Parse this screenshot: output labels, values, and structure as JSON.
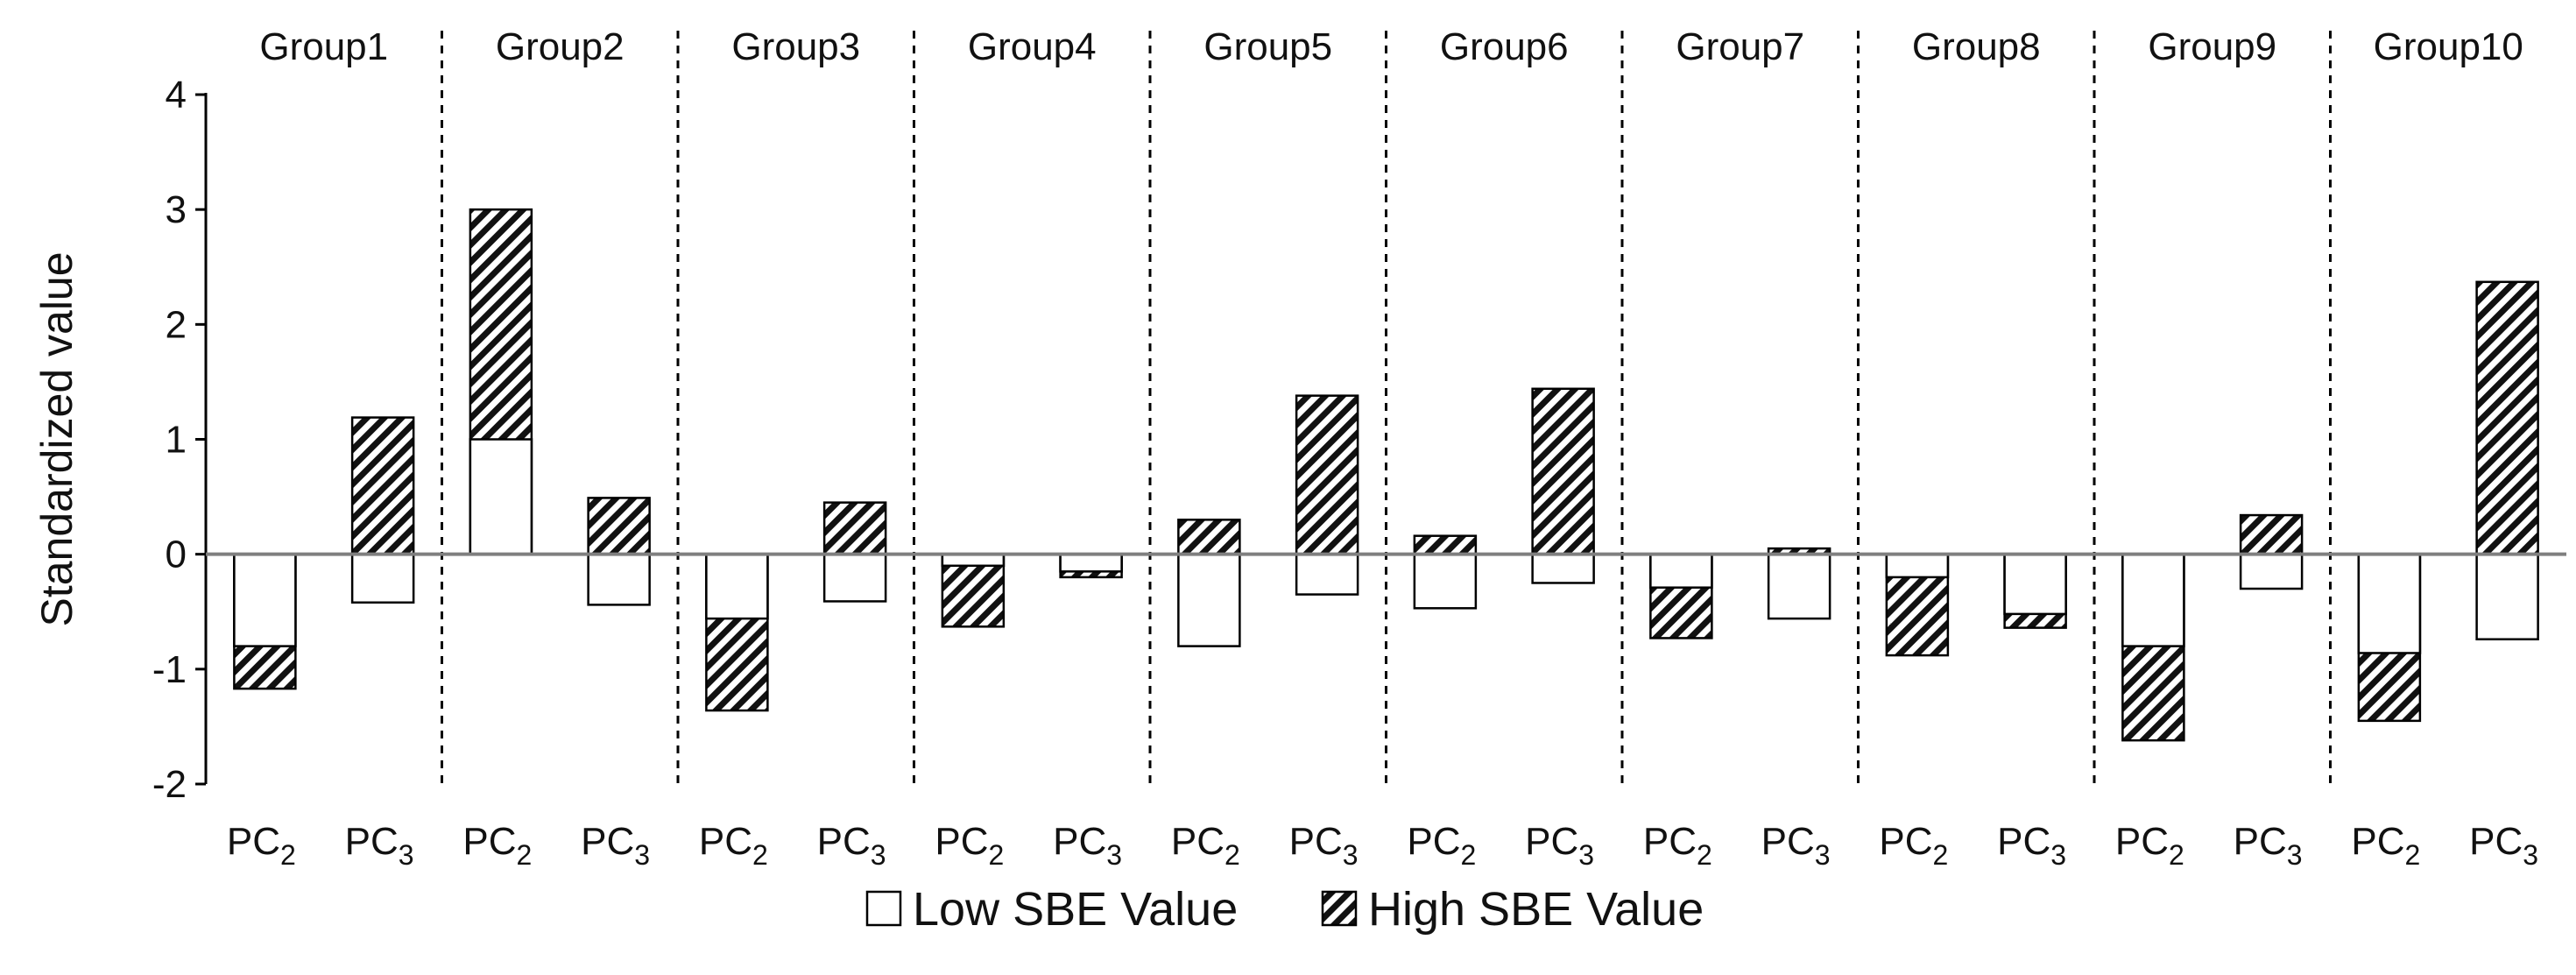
{
  "chart_data": {
    "type": "bar",
    "title": "",
    "xlabel": "",
    "ylabel": "Standardized  value",
    "ylim": [
      -2,
      4
    ],
    "yticks": [
      -2,
      -1,
      0,
      1,
      2,
      3,
      4
    ],
    "grid": false,
    "legend_position": "bottom-center",
    "groups": [
      "Group1",
      "Group2",
      "Group3",
      "Group4",
      "Group5",
      "Group6",
      "Group7",
      "Group8",
      "Group9",
      "Group10"
    ],
    "categories": [
      {
        "base": "PC",
        "sub": "2"
      },
      {
        "base": "PC",
        "sub": "3"
      }
    ],
    "series": [
      {
        "name": "Low SBE Value",
        "pattern": "solid-white",
        "values": [
          [
            -0.8,
            -0.42
          ],
          [
            1.0,
            -0.44
          ],
          [
            -0.56,
            -0.41
          ],
          [
            -0.1,
            -0.15
          ],
          [
            -0.8,
            -0.35
          ],
          [
            -0.47,
            -0.25
          ],
          [
            -0.29,
            -0.56
          ],
          [
            -0.2,
            -0.52
          ],
          [
            -0.8,
            -0.3
          ],
          [
            -0.86,
            -0.74
          ]
        ]
      },
      {
        "name": "High SBE Value",
        "pattern": "diagonal-hatch",
        "values": [
          [
            -1.17,
            1.19
          ],
          [
            3.0,
            0.49
          ],
          [
            -1.36,
            0.45
          ],
          [
            -0.63,
            -0.2
          ],
          [
            0.3,
            1.38
          ],
          [
            0.16,
            1.44
          ],
          [
            -0.73,
            0.05
          ],
          [
            -0.88,
            -0.64
          ],
          [
            -1.62,
            0.34
          ],
          [
            -1.45,
            2.37
          ]
        ]
      }
    ]
  },
  "colors": {
    "axis": "#000000",
    "zero_line": "#7f7f7f",
    "bar_fill": "#ffffff",
    "hatch": "#111111",
    "divider": "#000000"
  }
}
